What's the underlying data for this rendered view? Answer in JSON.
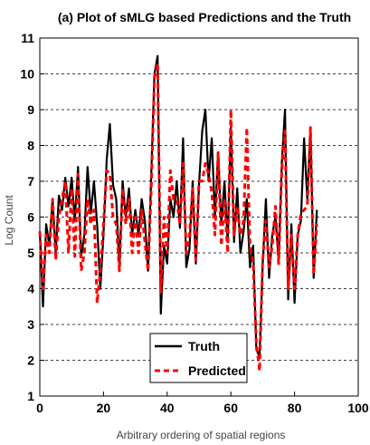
{
  "chart_data": {
    "type": "line",
    "title": "(a) Plot of sMLG based Predictions and the Truth",
    "xlabel": "Arbitrary ordering of spatial regions",
    "ylabel": "Log Count",
    "xlim": [
      0,
      100
    ],
    "ylim": [
      1,
      11
    ],
    "xticks": [
      "0",
      "20",
      "40",
      "60",
      "80",
      "100"
    ],
    "yticks": [
      "1",
      "2",
      "3",
      "4",
      "5",
      "6",
      "7",
      "8",
      "9",
      "10",
      "11"
    ],
    "grid": "horizontal-dashed",
    "legend_position": "bottom-center",
    "x": [
      0,
      1,
      2,
      3,
      4,
      5,
      6,
      7,
      8,
      9,
      10,
      11,
      12,
      13,
      14,
      15,
      16,
      17,
      18,
      19,
      20,
      21,
      22,
      23,
      24,
      25,
      26,
      27,
      28,
      29,
      30,
      31,
      32,
      33,
      34,
      35,
      36,
      37,
      38,
      39,
      40,
      41,
      42,
      43,
      44,
      45,
      46,
      47,
      48,
      49,
      50,
      51,
      52,
      53,
      54,
      55,
      56,
      57,
      58,
      59,
      60,
      61,
      62,
      63,
      64,
      65,
      66,
      67,
      68,
      69,
      70,
      71,
      72,
      73,
      74,
      75,
      76,
      77,
      78,
      79,
      80,
      81,
      82,
      83,
      84,
      85,
      86,
      87
    ],
    "series": [
      {
        "name": "Truth",
        "color": "#000000",
        "style": "solid",
        "values": [
          5.6,
          3.5,
          5.8,
          5.2,
          6.5,
          5.0,
          6.6,
          6.2,
          7.1,
          6.3,
          7.1,
          5.9,
          7.4,
          4.9,
          5.5,
          7.4,
          6.1,
          7.0,
          5.8,
          4.0,
          5.5,
          7.6,
          8.6,
          6.9,
          6.5,
          4.6,
          7.0,
          6.0,
          6.8,
          5.5,
          6.2,
          5.5,
          6.5,
          5.9,
          4.5,
          7.2,
          10.0,
          10.5,
          3.3,
          5.2,
          4.7,
          6.5,
          6.0,
          7.0,
          5.7,
          8.2,
          4.6,
          5.1,
          7.0,
          4.7,
          6.9,
          8.4,
          9.0,
          7.0,
          8.2,
          6.0,
          7.8,
          5.8,
          7.0,
          5.3,
          8.5,
          5.3,
          6.8,
          5.0,
          5.6,
          6.5,
          4.6,
          5.2,
          2.3,
          2.1,
          4.7,
          6.5,
          4.3,
          5.5,
          6.0,
          4.8,
          7.5,
          9.0,
          3.7,
          5.8,
          3.6,
          5.5,
          5.9,
          8.2,
          6.5,
          8.5,
          4.3,
          6.2
        ]
      },
      {
        "name": "Predicted",
        "color": "#ff0000",
        "style": "dashed",
        "values": [
          5.6,
          4.0,
          5.5,
          5.0,
          6.5,
          4.8,
          6.0,
          6.5,
          7.0,
          5.0,
          6.8,
          4.9,
          7.2,
          4.5,
          5.0,
          6.5,
          5.8,
          6.2,
          3.6,
          4.5,
          5.8,
          7.3,
          7.2,
          6.0,
          5.8,
          4.5,
          6.8,
          5.8,
          6.5,
          5.0,
          6.0,
          5.0,
          6.2,
          5.3,
          4.5,
          6.8,
          9.9,
          10.3,
          3.9,
          6.0,
          5.0,
          7.3,
          6.5,
          6.5,
          5.8,
          7.5,
          5.0,
          5.5,
          6.8,
          4.8,
          7.0,
          7.0,
          7.5,
          7.2,
          6.7,
          5.5,
          7.8,
          5.2,
          6.5,
          5.0,
          9.0,
          5.5,
          6.3,
          5.5,
          5.9,
          8.5,
          5.2,
          4.7,
          2.5,
          1.7,
          4.8,
          5.9,
          4.6,
          5.2,
          6.3,
          4.7,
          7.3,
          8.4,
          4.0,
          5.5,
          4.0,
          5.5,
          6.1,
          6.2,
          6.3,
          8.5,
          4.4,
          5.8
        ]
      }
    ]
  }
}
